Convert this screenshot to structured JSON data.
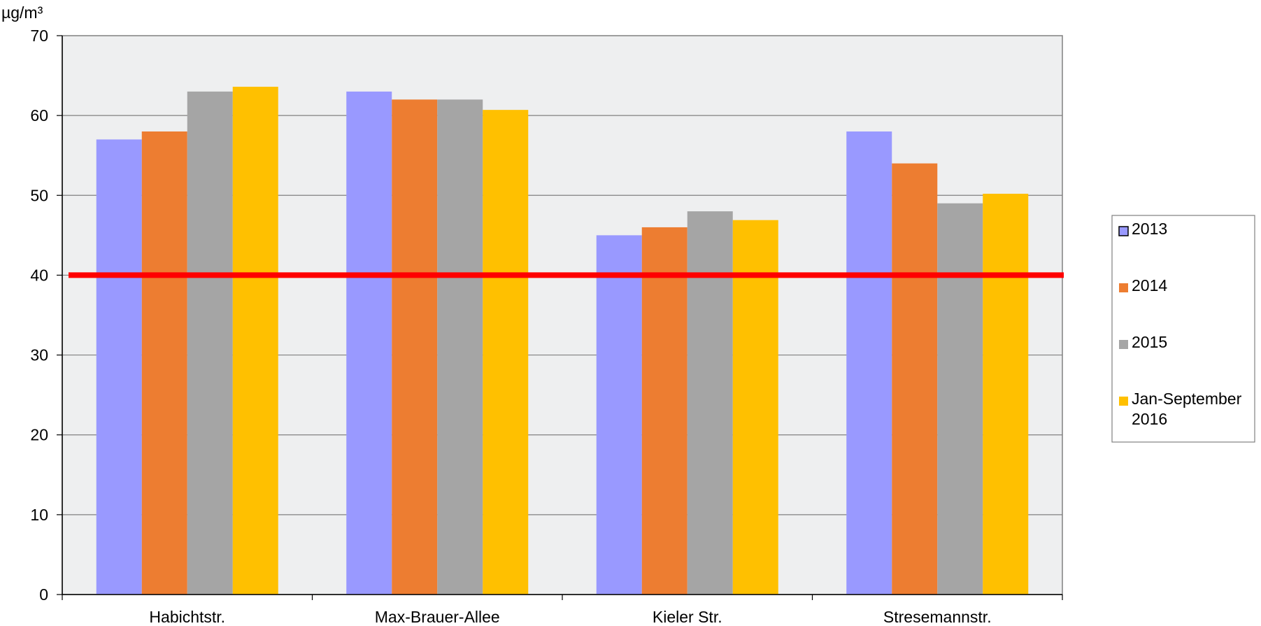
{
  "chart_data": {
    "type": "bar",
    "ylabel": "µg/m³",
    "ylim": [
      0,
      70
    ],
    "yticks": [
      0,
      10,
      20,
      30,
      40,
      50,
      60,
      70
    ],
    "grid": true,
    "legend_position": "right",
    "categories": [
      "Habichtstr.",
      "Max-Brauer-Allee",
      "Kieler Str.",
      "Stresemannstr."
    ],
    "series": [
      {
        "name": "2013",
        "color": "#9999ff",
        "values": [
          57,
          63,
          45,
          58
        ]
      },
      {
        "name": "2014",
        "color": "#ed7d31",
        "values": [
          58,
          62,
          46,
          54
        ]
      },
      {
        "name": "2015",
        "color": "#a5a5a5",
        "values": [
          63,
          62,
          48,
          49
        ]
      },
      {
        "name": "Jan-September 2016",
        "legend_lines": [
          "Jan-September",
          "2016"
        ],
        "color": "#ffc000",
        "values": [
          63.6,
          60.7,
          46.9,
          50.2
        ]
      }
    ],
    "reference_line": {
      "value": 40,
      "color": "#ff0000"
    },
    "plot_background": "#eeeff0"
  }
}
